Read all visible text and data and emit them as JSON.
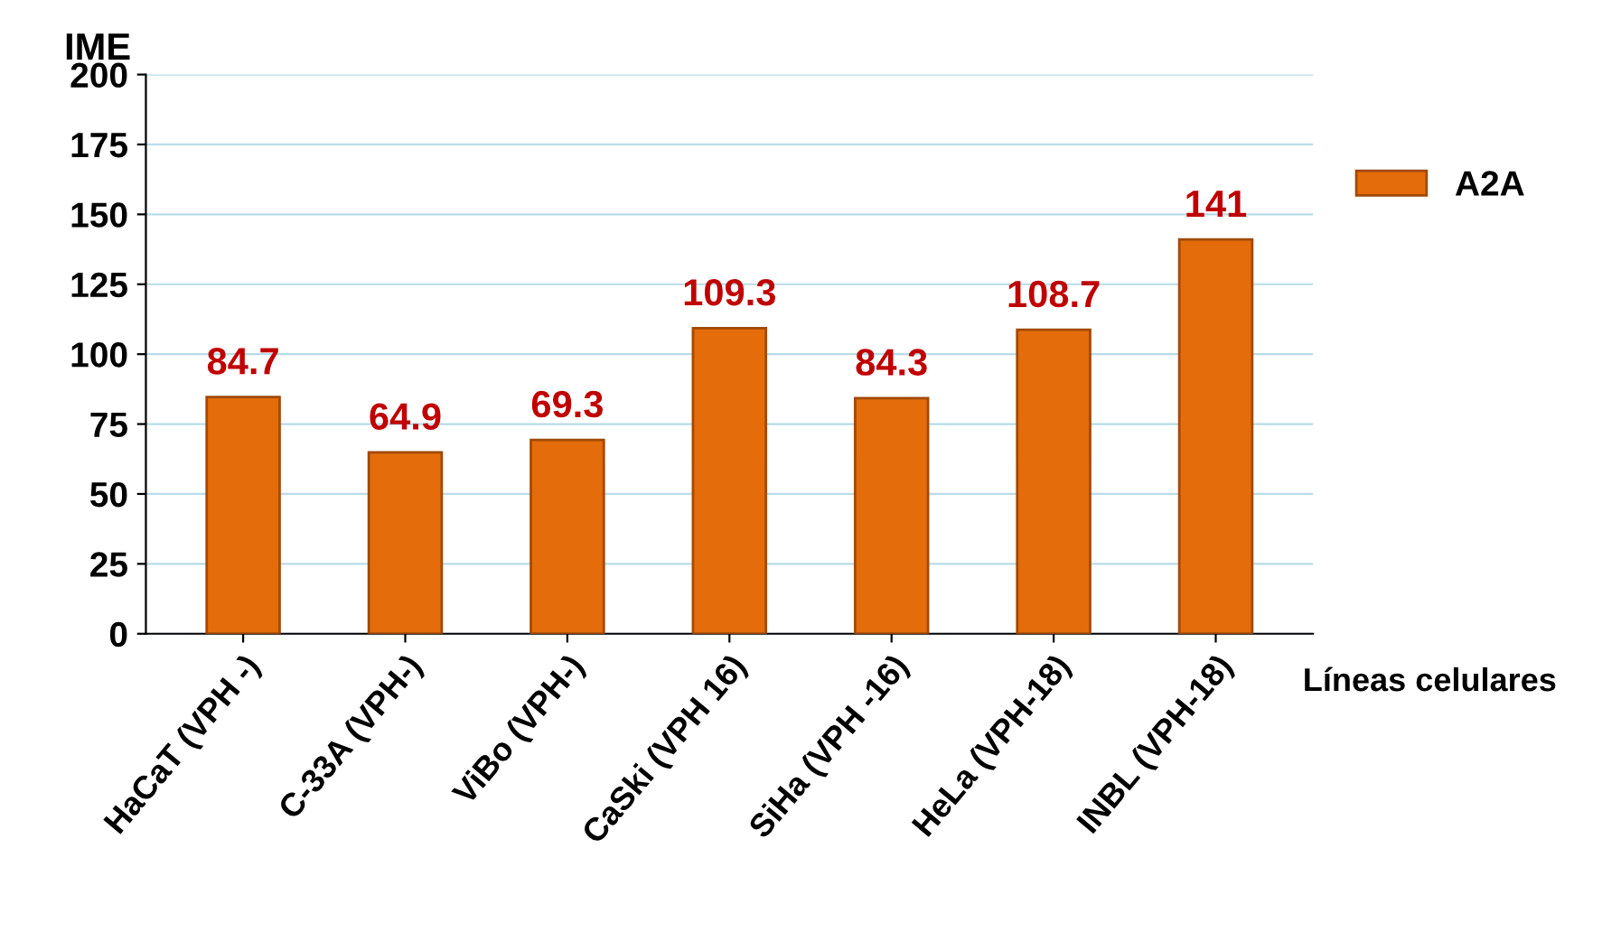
{
  "chart_data": {
    "type": "bar",
    "ylabel": "IME",
    "xlabel": "Líneas celulares",
    "categories": [
      "HaCaT (VPH -)",
      "C-33A (VPH-)",
      "ViBo (VPH-)",
      "CaSki (VPH 16)",
      "SiHa (VPH -16)",
      "HeLa (VPH-18)",
      "INBL (VPH-18)"
    ],
    "series": [
      {
        "name": "A2A",
        "color": "#e46c0a",
        "values": [
          84.7,
          64.9,
          69.3,
          109.3,
          84.3,
          108.7,
          141
        ]
      }
    ],
    "ylim": [
      0,
      200
    ],
    "yticks": [
      0,
      25,
      50,
      75,
      100,
      125,
      150,
      175,
      200
    ],
    "grid": "y",
    "legend": "right",
    "data_labels": true
  }
}
